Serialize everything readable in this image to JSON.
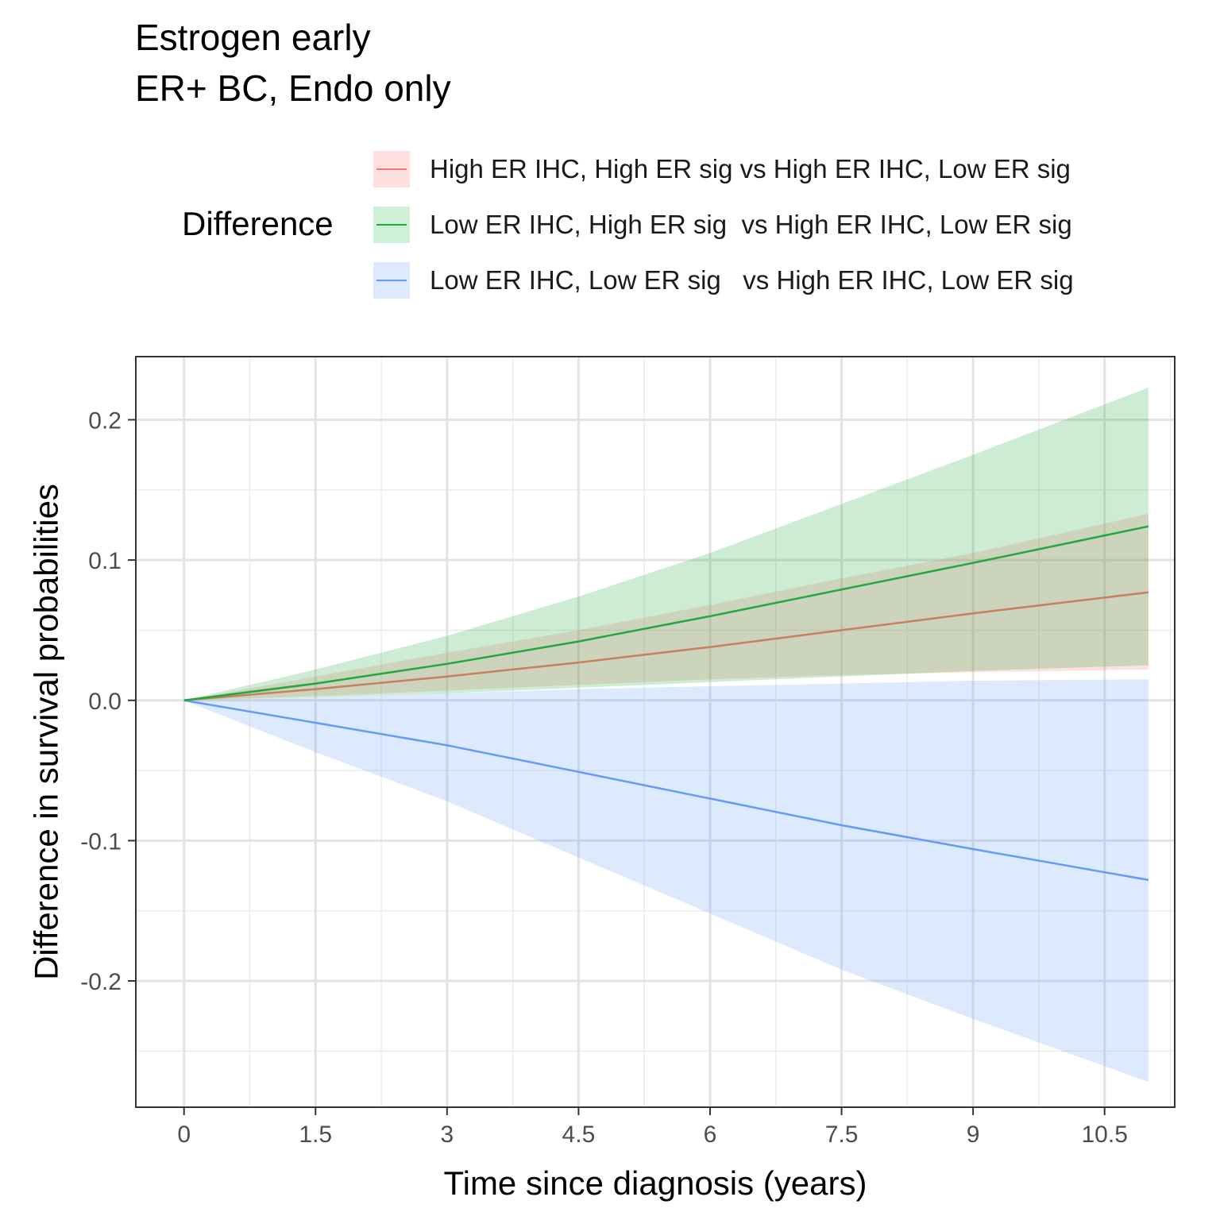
{
  "colors": {
    "red": "#F8766D",
    "red_fill": "#FFE0DE",
    "green": "#1FA83B",
    "green_fill": "#CDF0D6",
    "blue": "#6599F5",
    "blue_fill": "#DDE9FD",
    "overlap_fill": "#CCD9C4"
  },
  "chart_data": {
    "type": "line",
    "title": "Estrogen early",
    "subtitle": "ER+ BC, Endo only",
    "xlabel": "Time since diagnosis (years)",
    "ylabel": "Difference in survival probabilities",
    "xlim": [
      -0.55,
      11.3
    ],
    "ylim": [
      -0.29,
      0.245
    ],
    "grid": true,
    "legend_title": "Difference",
    "legend_position": "top",
    "x_ticks": [
      0,
      1.5,
      3,
      4.5,
      6,
      7.5,
      9,
      10.5
    ],
    "x_tick_labels": [
      "0",
      "1.5",
      "3",
      "4.5",
      "6",
      "7.5",
      "9",
      "10.5"
    ],
    "y_ticks": [
      0.2,
      0.1,
      0.0,
      -0.1,
      -0.2
    ],
    "y_tick_labels": [
      "0.2",
      "0.1",
      "0.0",
      "-0.1",
      "-0.2"
    ],
    "x": [
      0,
      1.5,
      3,
      4.5,
      6,
      7.5,
      9,
      11
    ],
    "series": [
      {
        "name": "High ER IHC, High ER sig vs High ER IHC, Low ER sig",
        "color_key": "red",
        "values": [
          0,
          0.008,
          0.017,
          0.027,
          0.038,
          0.05,
          0.062,
          0.077
        ],
        "lower": [
          0,
          0.003,
          0.007,
          0.011,
          0.015,
          0.018,
          0.02,
          0.022
        ],
        "upper": [
          0,
          0.017,
          0.034,
          0.05,
          0.068,
          0.087,
          0.105,
          0.133
        ]
      },
      {
        "name": "Low ER IHC, High ER sig  vs High ER IHC, Low ER sig",
        "color_key": "green",
        "values": [
          0,
          0.012,
          0.026,
          0.042,
          0.06,
          0.079,
          0.098,
          0.124
        ],
        "lower": [
          0,
          0.002,
          0.005,
          0.009,
          0.013,
          0.017,
          0.021,
          0.025
        ],
        "upper": [
          0,
          0.022,
          0.046,
          0.074,
          0.105,
          0.14,
          0.175,
          0.223
        ]
      },
      {
        "name": "Low ER IHC, Low ER sig   vs High ER IHC, Low ER sig",
        "color_key": "blue",
        "values": [
          0,
          -0.016,
          -0.032,
          -0.051,
          -0.07,
          -0.089,
          -0.106,
          -0.128
        ],
        "lower": [
          0,
          -0.037,
          -0.072,
          -0.112,
          -0.152,
          -0.192,
          -0.227,
          -0.272
        ],
        "upper": [
          0,
          0.002,
          0.005,
          0.008,
          0.01,
          0.012,
          0.014,
          0.015
        ]
      }
    ]
  }
}
